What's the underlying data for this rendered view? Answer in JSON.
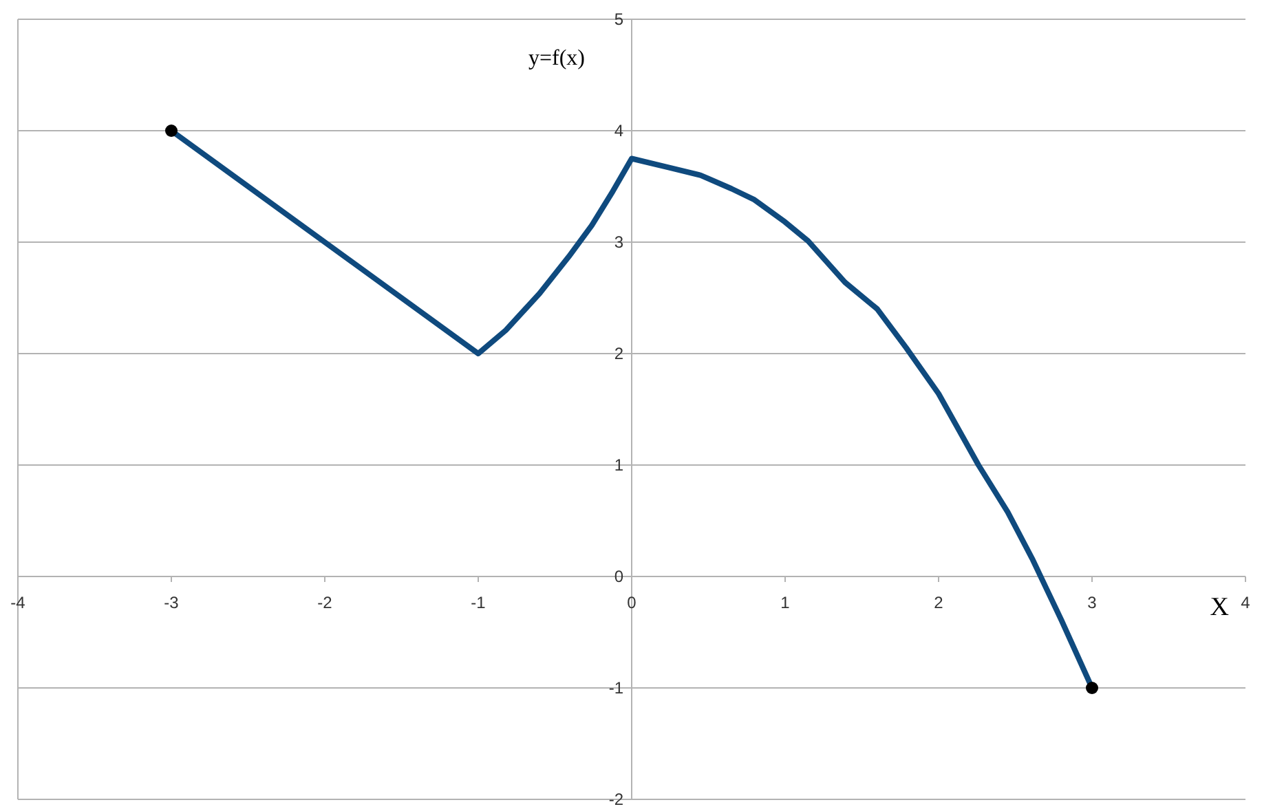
{
  "chart_data": {
    "type": "line",
    "xlabel": "X",
    "ylabel": "y=f(x)",
    "xlim": [
      -4,
      4
    ],
    "ylim": [
      -2,
      5
    ],
    "xticks": [
      -4,
      -3,
      -2,
      -1,
      0,
      1,
      2,
      3,
      4
    ],
    "yticks": [
      -2,
      -1,
      0,
      1,
      2,
      3,
      4,
      5
    ],
    "grid": "y",
    "line_style": "solid",
    "series": [
      {
        "color": "#0f4a7e",
        "marker": "none",
        "x": [
          -3,
          -1,
          -0.82,
          -0.6,
          -0.41,
          -0.26,
          -0.13,
          0,
          0.24,
          0.45,
          0.65,
          0.8,
          1,
          1.15,
          1.39,
          1.6,
          1.79,
          2,
          2.26,
          2.45,
          2.61,
          2.8,
          3
        ],
        "values": [
          4,
          2,
          2.21,
          2.54,
          2.87,
          3.15,
          3.44,
          3.75,
          3.67,
          3.6,
          3.48,
          3.38,
          3.18,
          3.01,
          2.64,
          2.4,
          2.05,
          1.64,
          1,
          0.58,
          0.16,
          -0.39,
          -1
        ]
      },
      {
        "type": "scatter",
        "color": "#000000",
        "marker": "circle",
        "x": [
          -3,
          3
        ],
        "values": [
          4,
          -1
        ]
      }
    ]
  }
}
